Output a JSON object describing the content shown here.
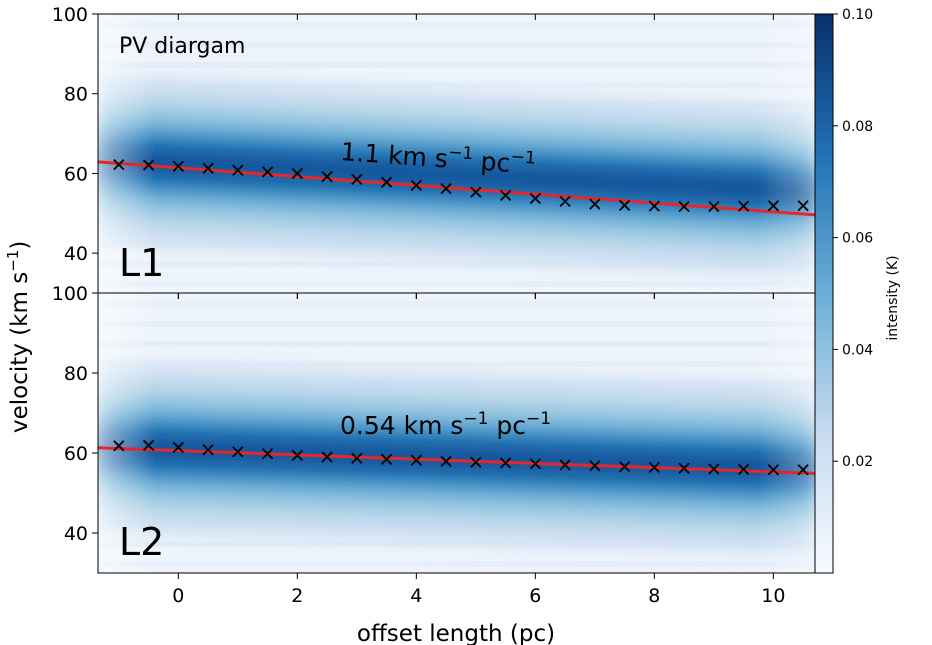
{
  "chart_data": [
    {
      "type": "scatter",
      "title": "PV diargam",
      "panel_label": "L1",
      "xlim": [
        -1.35,
        10.7
      ],
      "ylim": [
        30,
        100
      ],
      "yticks": [
        40,
        60,
        80,
        100
      ],
      "xticks": [
        0,
        2,
        4,
        6,
        8,
        10
      ],
      "points": {
        "x": [
          -1,
          -0.5,
          0,
          0.5,
          1,
          1.5,
          2,
          2.5,
          3,
          3.5,
          4,
          4.5,
          5,
          5.5,
          6,
          6.5,
          7,
          7.5,
          8,
          8.5,
          9,
          9.5,
          10,
          10.5
        ],
        "y": [
          62.2,
          62.1,
          61.8,
          61.3,
          60.8,
          60.4,
          60.0,
          59.2,
          58.5,
          57.8,
          57.0,
          56.2,
          55.3,
          54.5,
          53.7,
          53.0,
          52.3,
          52.0,
          51.8,
          51.7,
          51.7,
          51.8,
          51.9,
          51.9
        ],
        "marker": "x"
      },
      "fit": {
        "x": [
          -1.35,
          10.7
        ],
        "y": [
          62.9,
          49.6
        ],
        "color": "#e8262a"
      },
      "annotation": {
        "line1": "1.1 km s",
        "sup1": "−1",
        "line2": " pc",
        "sup2": "−1"
      },
      "emission_band": {
        "center": [
          63.5,
          55.5
        ],
        "width": 11
      }
    },
    {
      "type": "scatter",
      "panel_label": "L2",
      "xlim": [
        -1.35,
        10.7
      ],
      "ylim": [
        30,
        100
      ],
      "yticks": [
        40,
        60,
        80,
        100
      ],
      "xticks": [
        0,
        2,
        4,
        6,
        8,
        10
      ],
      "xlabel": "offset length (pc)",
      "points": {
        "x": [
          -1,
          -0.5,
          0,
          0.5,
          1,
          1.5,
          2,
          2.5,
          3,
          3.5,
          4,
          4.5,
          5,
          5.5,
          6,
          6.5,
          7,
          7.5,
          8,
          8.5,
          9,
          9.5,
          10,
          10.5
        ],
        "y": [
          61.8,
          61.9,
          61.4,
          60.8,
          60.3,
          59.8,
          59.4,
          59.0,
          58.7,
          58.4,
          58.2,
          57.9,
          57.7,
          57.5,
          57.3,
          57.0,
          56.8,
          56.6,
          56.4,
          56.2,
          56.0,
          55.9,
          55.8,
          55.8
        ],
        "marker": "x"
      },
      "fit": {
        "x": [
          -1.35,
          10.7
        ],
        "y": [
          61.3,
          54.9
        ],
        "color": "#e8262a"
      },
      "annotation": {
        "line1": "0.54 km s",
        "sup1": "−1",
        "line2": " pc",
        "sup2": "−1"
      },
      "emission_band": {
        "center": [
          61.5,
          56.0
        ],
        "width": 11
      }
    }
  ],
  "ylabel": {
    "main": "velocity (km s",
    "sup": "−1",
    "tail": ")"
  },
  "colorbar": {
    "label": "intensity (K)",
    "ticks": [
      "0.10",
      "0.08",
      "0.06",
      "0.04",
      "0.02"
    ],
    "tick_values": [
      0.1,
      0.08,
      0.06,
      0.04,
      0.02
    ],
    "range": [
      0.0,
      0.1
    ],
    "colors": [
      "#f7fbff",
      "#c6dbef",
      "#6baed6",
      "#2171b5",
      "#08306b"
    ]
  }
}
